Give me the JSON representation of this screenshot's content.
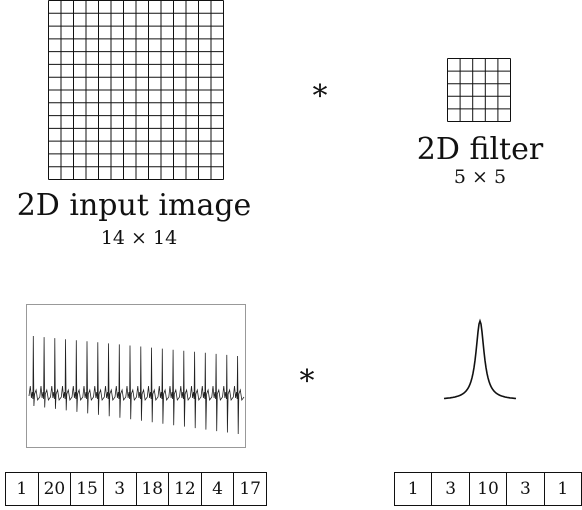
{
  "image_2d": {
    "grid_n": 14,
    "label": "2D input image",
    "size_label": "14 × 14"
  },
  "filter_2d": {
    "grid_n": 5,
    "label": "2D filter",
    "size_label": "5 × 5"
  },
  "operator_symbol": "*",
  "signal_1d": {
    "values": [
      1,
      20,
      15,
      3,
      18,
      12,
      4,
      17
    ]
  },
  "filter_1d": {
    "values": [
      1,
      3,
      10,
      3,
      1
    ]
  }
}
